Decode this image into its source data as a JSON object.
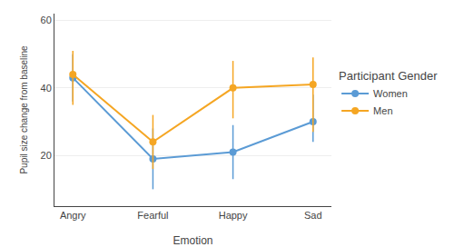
{
  "chart_data": {
    "type": "line",
    "x_label": "Emotion",
    "y_label": "Pupil size change from baseline",
    "legend_title": "Participant Gender",
    "categories": [
      "Angry",
      "Fearful",
      "Happy",
      "Sad"
    ],
    "series": [
      {
        "name": "Women",
        "color": "#5B9BD5",
        "marker": "circle",
        "values": [
          43,
          19,
          21,
          30
        ],
        "ci_lower": [
          36,
          10,
          13,
          24
        ],
        "ci_upper": [
          50,
          28,
          29,
          38
        ]
      },
      {
        "name": "Men",
        "color": "#F5A623",
        "marker": "circle",
        "values": [
          44,
          24,
          40,
          41
        ],
        "ci_lower": [
          35,
          16,
          31,
          27
        ],
        "ci_upper": [
          51,
          32,
          48,
          49
        ]
      }
    ],
    "ylim": [
      5,
      62
    ],
    "yticks": [
      20,
      40,
      60
    ],
    "grid": true,
    "legend": "right"
  }
}
